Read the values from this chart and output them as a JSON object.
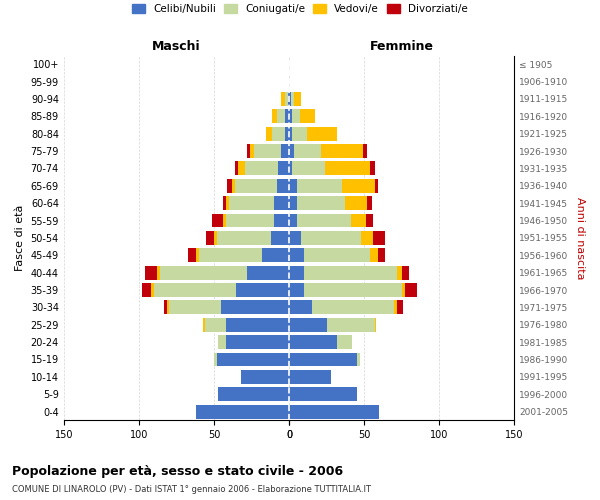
{
  "age_groups": [
    "100+",
    "95-99",
    "90-94",
    "85-89",
    "80-84",
    "75-79",
    "70-74",
    "65-69",
    "60-64",
    "55-59",
    "50-54",
    "45-49",
    "40-44",
    "35-39",
    "30-34",
    "25-29",
    "20-24",
    "15-19",
    "10-14",
    "5-9",
    "0-4"
  ],
  "birth_years": [
    "≤ 1905",
    "1906-1910",
    "1911-1915",
    "1916-1920",
    "1921-1925",
    "1926-1930",
    "1931-1935",
    "1936-1940",
    "1941-1945",
    "1946-1950",
    "1951-1955",
    "1956-1960",
    "1961-1965",
    "1966-1970",
    "1971-1975",
    "1976-1980",
    "1981-1985",
    "1986-1990",
    "1991-1995",
    "1996-2000",
    "2001-2005"
  ],
  "maschi_celibi": [
    0,
    0,
    1,
    3,
    3,
    5,
    7,
    8,
    10,
    10,
    12,
    18,
    28,
    35,
    45,
    42,
    42,
    48,
    32,
    47,
    62
  ],
  "maschi_coniugati": [
    0,
    0,
    2,
    5,
    8,
    18,
    22,
    28,
    30,
    32,
    36,
    42,
    58,
    55,
    35,
    14,
    5,
    2,
    0,
    0,
    0
  ],
  "maschi_vedovi": [
    0,
    0,
    2,
    3,
    4,
    3,
    5,
    2,
    2,
    2,
    2,
    2,
    2,
    2,
    1,
    1,
    0,
    0,
    0,
    0,
    0
  ],
  "maschi_divorziati": [
    0,
    0,
    0,
    0,
    0,
    2,
    2,
    3,
    2,
    7,
    5,
    5,
    8,
    6,
    2,
    0,
    0,
    0,
    0,
    0,
    0
  ],
  "femmine_celibi": [
    0,
    0,
    1,
    2,
    2,
    3,
    2,
    5,
    5,
    5,
    8,
    10,
    10,
    10,
    15,
    25,
    32,
    45,
    28,
    45,
    60
  ],
  "femmine_coniugati": [
    0,
    0,
    2,
    5,
    10,
    18,
    22,
    30,
    32,
    36,
    40,
    44,
    62,
    65,
    55,
    32,
    10,
    2,
    0,
    0,
    0
  ],
  "femmine_vedovi": [
    0,
    0,
    5,
    10,
    20,
    28,
    30,
    22,
    15,
    10,
    8,
    5,
    3,
    2,
    2,
    1,
    0,
    0,
    0,
    0,
    0
  ],
  "femmine_divorziati": [
    0,
    0,
    0,
    0,
    0,
    3,
    3,
    2,
    3,
    5,
    8,
    5,
    5,
    8,
    4,
    0,
    0,
    0,
    0,
    0,
    0
  ],
  "colors": {
    "celibi": "#4472c4",
    "coniugati": "#c5d9a0",
    "vedovi": "#ffc000",
    "divorziati": "#c0000b"
  },
  "legend_labels": [
    "Celibi/Nubili",
    "Coniugati/e",
    "Vedovi/e",
    "Divorziati/e"
  ],
  "title": "Popolazione per età, sesso e stato civile - 2006",
  "subtitle": "COMUNE DI LINAROLO (PV) - Dati ISTAT 1° gennaio 2006 - Elaborazione TUTTITALIA.IT",
  "ylabel_left": "Fasce di età",
  "ylabel_right": "Anni di nascita",
  "xlabel_maschi": "Maschi",
  "xlabel_femmine": "Femmine",
  "xlim": 150,
  "background_color": "#ffffff",
  "grid_color": "#cccccc"
}
